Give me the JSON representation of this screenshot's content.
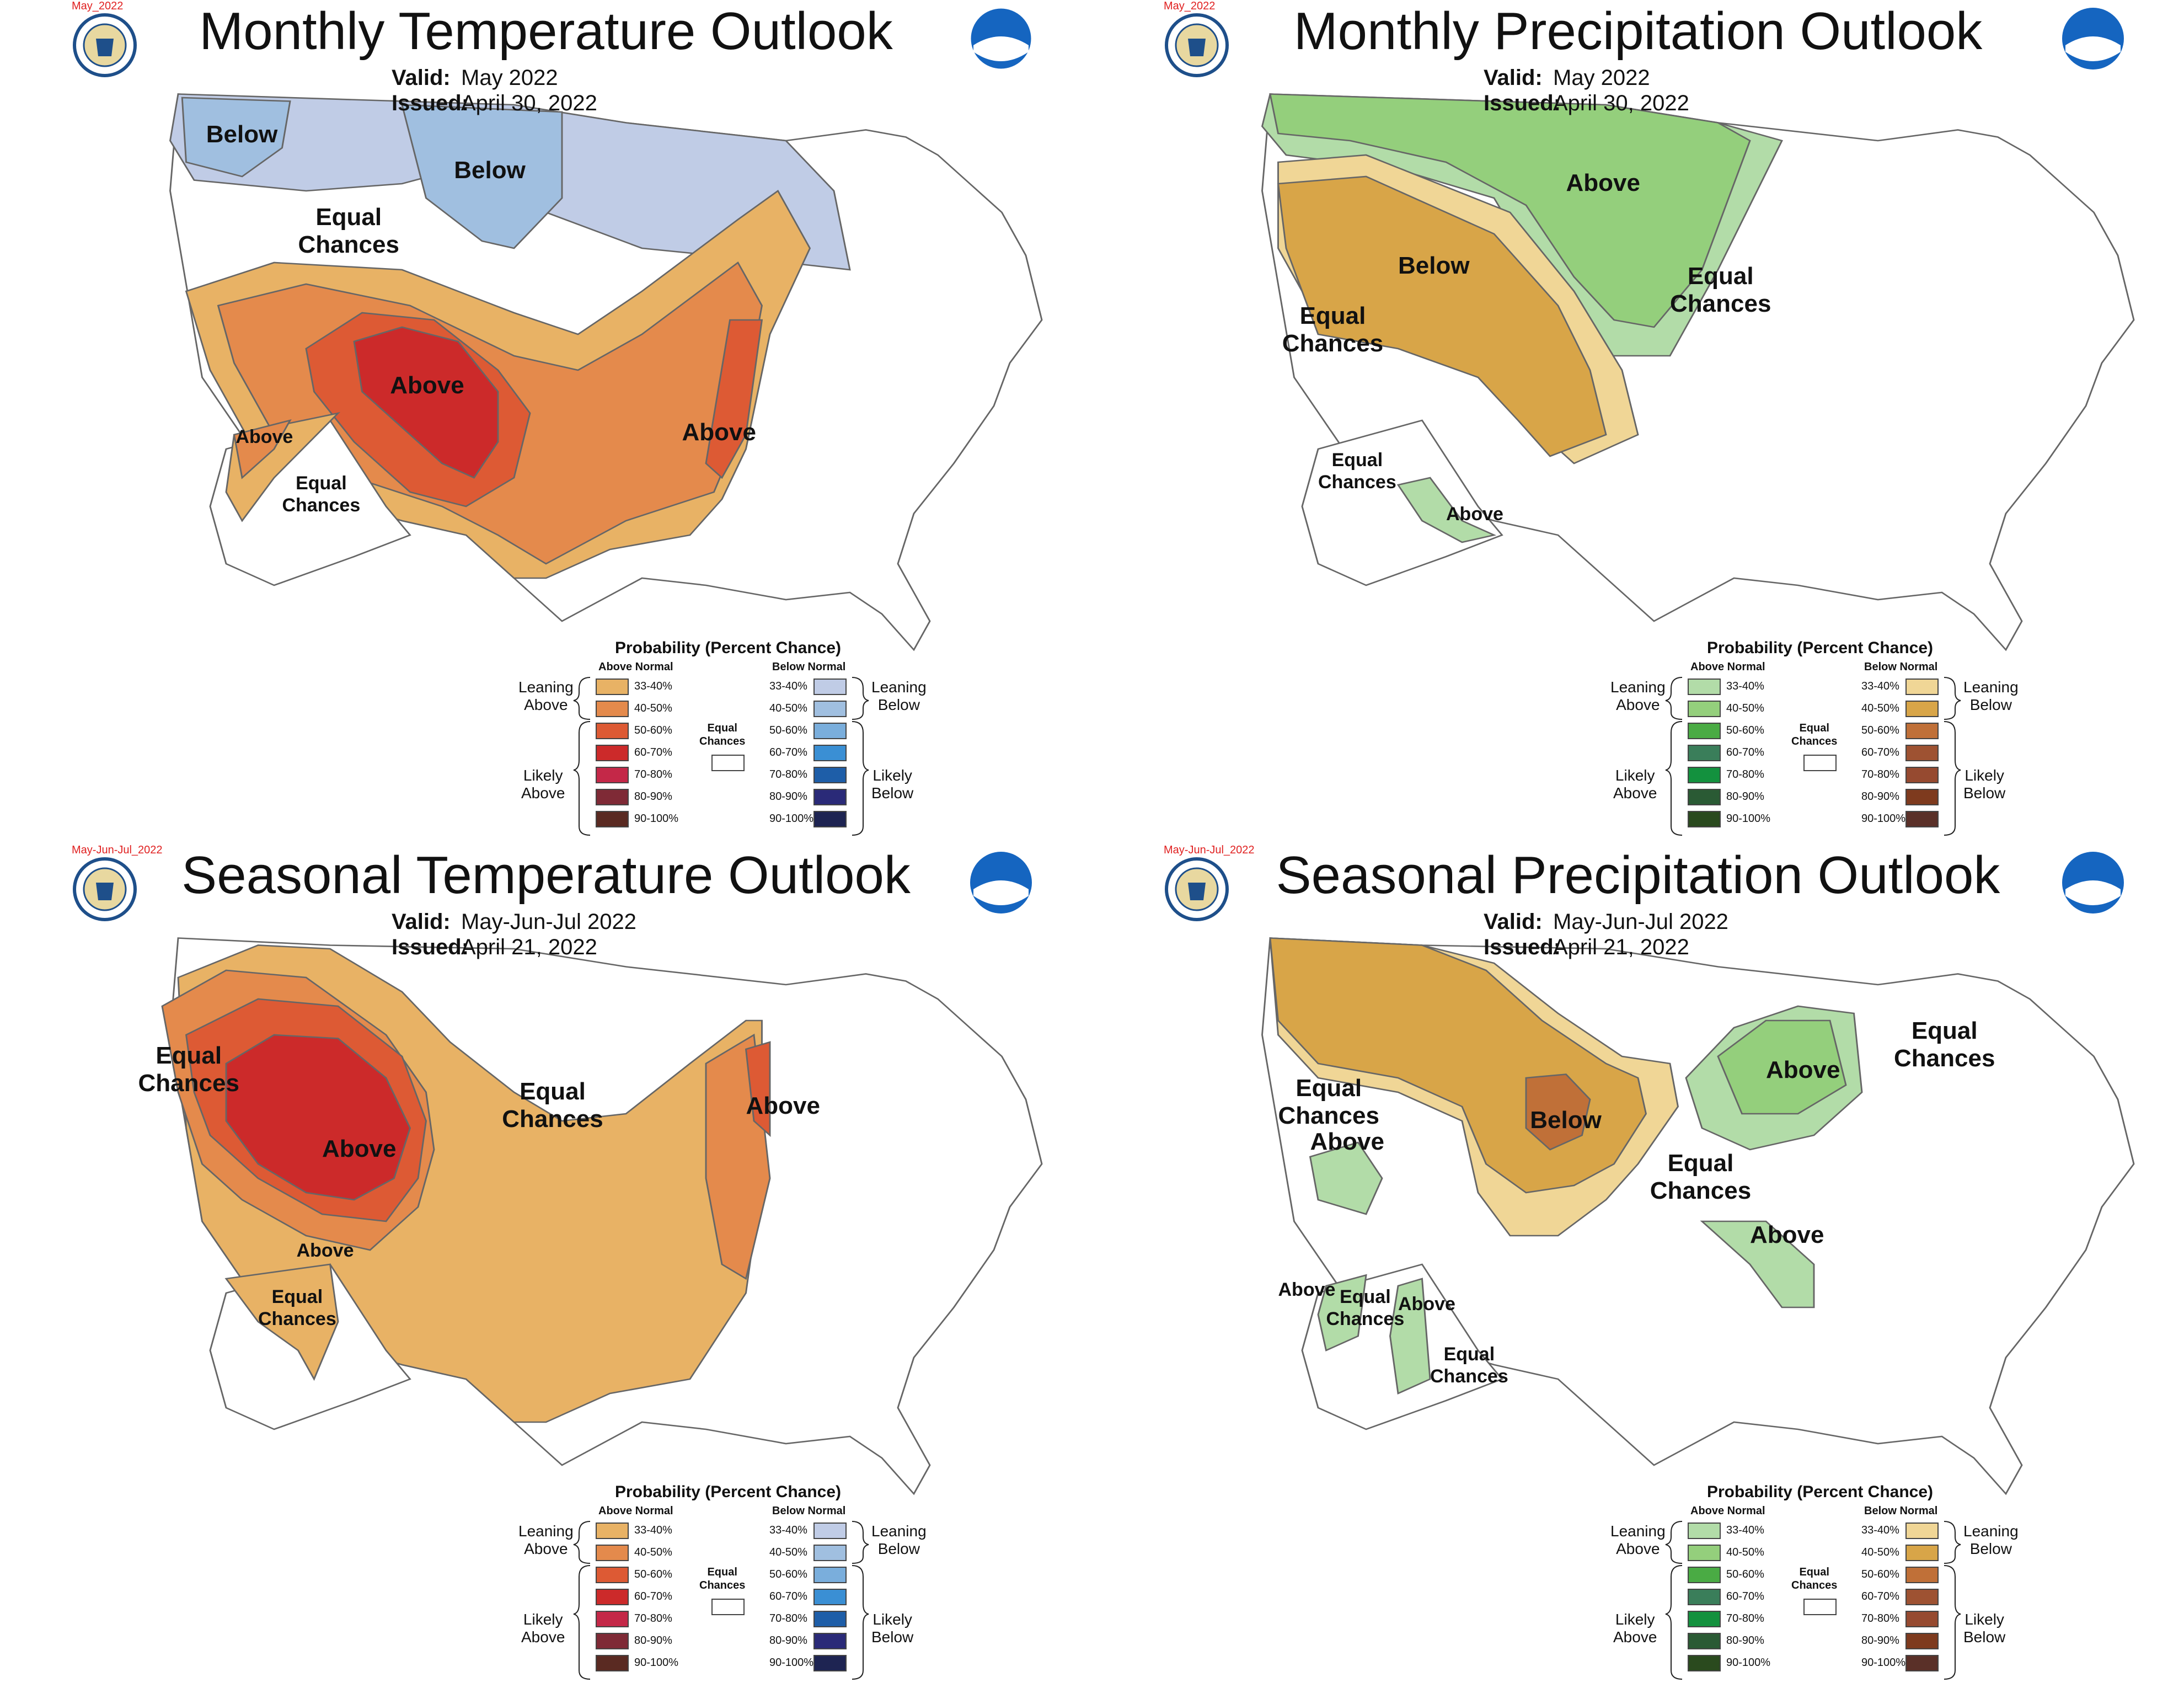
{
  "panels": [
    {
      "date_tag": "May_2022",
      "title": "Monthly Temperature Outlook",
      "valid_label": "Valid:",
      "valid_value": "May 2022",
      "issued_label": "Issued:",
      "issued_value": "April 30, 2022",
      "labels": [
        "Below",
        "Below",
        "Equal\nChances",
        "Above",
        "Above",
        "Above",
        "Equal\nChances"
      ],
      "legend_kind": "temperature"
    },
    {
      "date_tag": "May_2022",
      "title": "Monthly Precipitation Outlook",
      "valid_label": "Valid:",
      "valid_value": "May 2022",
      "issued_label": "Issued:",
      "issued_value": "April 30, 2022",
      "labels": [
        "Above",
        "Below",
        "Equal\nChances",
        "Equal\nChances",
        "Equal\nChances",
        "Above"
      ],
      "legend_kind": "precipitation"
    },
    {
      "date_tag": "May-Jun-Jul_2022",
      "title": "Seasonal Temperature Outlook",
      "valid_label": "Valid:",
      "valid_value": "May-Jun-Jul 2022",
      "issued_label": "Issued:",
      "issued_value": "April 21, 2022",
      "labels": [
        "Equal\nChances",
        "Equal\nChances",
        "Above",
        "Above",
        "Above",
        "Equal\nChances"
      ],
      "legend_kind": "temperature"
    },
    {
      "date_tag": "May-Jun-Jul_2022",
      "title": "Seasonal Precipitation Outlook",
      "valid_label": "Valid:",
      "valid_value": "May-Jun-Jul 2022",
      "issued_label": "Issued:",
      "issued_value": "April 21, 2022",
      "labels": [
        "Equal\nChances",
        "Above",
        "Equal\nChances",
        "Above",
        "Below",
        "Equal\nChances",
        "Above",
        "Above",
        "Equal\nChances",
        "Above",
        "Equal\nChances"
      ],
      "legend_kind": "precipitation"
    }
  ],
  "legend": {
    "heading": "Probability (Percent Chance)",
    "above_normal": "Above Normal",
    "below_normal": "Below Normal",
    "equal_chances": "Equal\nChances",
    "leaning_above": "Leaning\nAbove",
    "likely_above": "Likely\nAbove",
    "leaning_below": "Leaning\nBelow",
    "likely_below": "Likely\nBelow",
    "ranges": [
      "33-40%",
      "40-50%",
      "50-60%",
      "60-70%",
      "70-80%",
      "80-90%",
      "90-100%"
    ]
  },
  "colors": {
    "temp_above": [
      "#e8b265",
      "#e48a4c",
      "#dd5a34",
      "#cc2a2a",
      "#c42848",
      "#7f2a36",
      "#5a2a22"
    ],
    "temp_below": [
      "#c0cce6",
      "#a0bfe0",
      "#7aaedc",
      "#3a8fd4",
      "#1e5ea8",
      "#2a2a78",
      "#1e2452"
    ],
    "precip_above": [
      "#b2dca8",
      "#94cf7c",
      "#4aab44",
      "#3a7e5a",
      "#13913e",
      "#2a5a34",
      "#2a4a1e"
    ],
    "precip_below": [
      "#f0d696",
      "#d8a548",
      "#c07038",
      "#9e5232",
      "#964a30",
      "#7e3a1e",
      "#5a3028"
    ],
    "noaa_blue": "#1565c0",
    "date_tag_red": "#e02020"
  }
}
